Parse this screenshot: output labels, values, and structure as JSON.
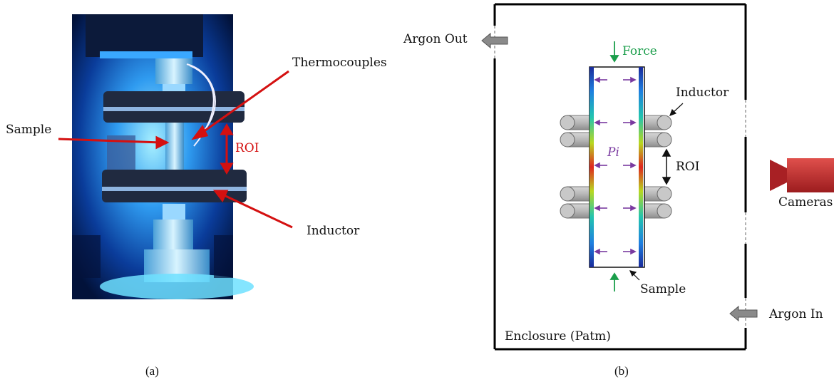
{
  "panel_a": {
    "caption": "(a)",
    "labels": {
      "thermocouples": "Thermocouples",
      "sample": "Sample",
      "roi": "ROI",
      "inductor": "Inductor"
    }
  },
  "panel_b": {
    "caption": "(b)",
    "labels": {
      "argon_out": "Argon Out",
      "argon_in": "Argon In",
      "force": "Force",
      "inductor": "Inductor",
      "roi": "ROI",
      "pressure_inner": "Pi",
      "cameras": "Cameras",
      "sample": "Sample",
      "enclosure": "Enclosure (Patm)"
    }
  },
  "colors": {
    "arrow_red": "#d41010",
    "force_green": "#1b9e4b",
    "pressure_purple": "#7a3aa0",
    "camera_red": "#c0282c",
    "photo_blue": "#1a6fd8"
  }
}
